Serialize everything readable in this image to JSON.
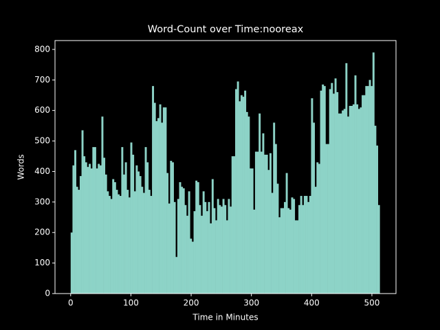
{
  "chart_data": {
    "type": "histogram",
    "title": "Word-Count over Time:nooreax",
    "xlabel": "Time in Minutes",
    "ylabel": "Words",
    "color": "#8dd3c7",
    "bins": [
      0,
      3,
      6,
      9,
      12,
      15,
      18,
      21,
      24,
      27,
      30,
      33,
      36,
      39,
      42,
      45,
      48,
      51,
      54,
      57,
      60,
      63,
      66,
      69,
      72,
      75,
      78,
      81,
      84,
      87,
      90,
      93,
      96,
      99,
      102,
      105,
      108,
      111,
      114,
      117,
      120,
      123,
      126,
      129,
      132,
      135,
      138,
      141,
      144,
      147,
      150,
      153,
      156,
      159,
      162,
      165,
      168,
      171,
      174,
      177,
      180,
      183,
      186,
      189,
      192,
      195,
      198,
      201,
      204,
      207,
      210,
      213,
      216,
      219,
      222,
      225,
      228,
      231,
      234,
      237,
      240,
      243,
      246,
      249,
      252,
      255,
      258,
      261,
      264,
      267,
      270,
      273,
      276,
      279,
      282,
      285,
      288,
      291,
      294,
      297,
      300,
      303,
      306,
      309,
      312,
      315,
      318,
      321,
      324,
      327,
      330,
      333,
      336,
      339,
      342,
      345,
      348,
      351,
      354,
      357,
      360,
      363,
      366,
      369,
      372,
      375,
      378,
      381,
      384,
      387,
      390,
      393,
      396,
      399,
      402,
      405,
      408,
      411,
      414,
      417,
      420,
      423,
      426,
      429,
      432,
      435,
      438,
      441,
      444,
      447,
      450,
      453,
      456,
      459,
      462,
      465,
      468,
      471,
      474,
      477,
      480,
      483,
      486,
      489,
      492,
      495,
      498,
      501,
      504,
      507,
      510,
      513
    ],
    "values": [
      200,
      420,
      470,
      350,
      340,
      385,
      535,
      450,
      430,
      415,
      425,
      410,
      480,
      480,
      410,
      425,
      420,
      580,
      445,
      390,
      335,
      320,
      310,
      375,
      365,
      340,
      325,
      320,
      480,
      390,
      430,
      340,
      315,
      495,
      455,
      335,
      420,
      400,
      385,
      350,
      330,
      480,
      430,
      340,
      320,
      680,
      625,
      565,
      575,
      620,
      560,
      610,
      610,
      395,
      295,
      435,
      430,
      300,
      120,
      310,
      365,
      350,
      345,
      290,
      255,
      335,
      180,
      170,
      270,
      370,
      365,
      290,
      255,
      335,
      300,
      270,
      300,
      230,
      375,
      280,
      240,
      310,
      290,
      285,
      310,
      290,
      240,
      310,
      285,
      450,
      450,
      670,
      695,
      630,
      650,
      645,
      665,
      595,
      580,
      410,
      410,
      275,
      465,
      465,
      590,
      465,
      525,
      455,
      455,
      405,
      460,
      330,
      560,
      490,
      360,
      250,
      280,
      280,
      300,
      395,
      280,
      275,
      315,
      310,
      240,
      240,
      290,
      320,
      290,
      320,
      320,
      300,
      320,
      640,
      560,
      350,
      430,
      425,
      665,
      685,
      680,
      490,
      490,
      670,
      690,
      655,
      705,
      660,
      590,
      590,
      600,
      605,
      755,
      580,
      615,
      615,
      620,
      715,
      620,
      605,
      610,
      650,
      650,
      680,
      680,
      700,
      680,
      790,
      550,
      485,
      290
    ],
    "xlim": [
      -26,
      540
    ],
    "xticks": [
      0,
      100,
      200,
      300,
      400,
      500
    ],
    "ylim": [
      0,
      829
    ],
    "yticks": [
      0,
      100,
      200,
      300,
      400,
      500,
      600,
      700,
      800
    ]
  }
}
